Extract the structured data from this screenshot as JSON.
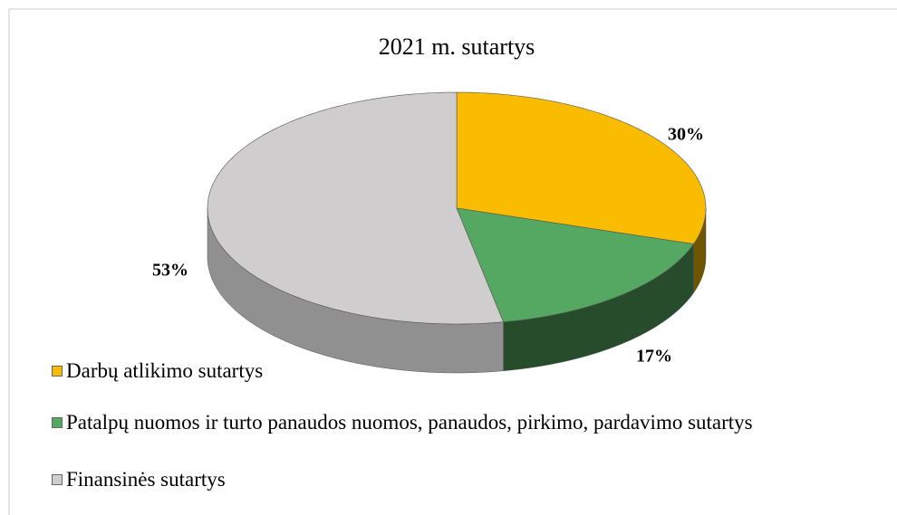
{
  "chart_data": {
    "type": "pie",
    "title": "2021 m. sutartys",
    "categories": [
      "Darbų atlikimo sutartys",
      "Patalpų nuomos ir  turto panaudos nuomos, panaudos, pirkimo, pardavimo sutartys",
      "Finansinės sutartys"
    ],
    "values": [
      30,
      17,
      53
    ],
    "value_labels": [
      "30%",
      "17%",
      "53%"
    ],
    "colors": [
      "#f9bc00",
      "#55a862",
      "#cfcdce"
    ],
    "legend": "bottom-left"
  }
}
